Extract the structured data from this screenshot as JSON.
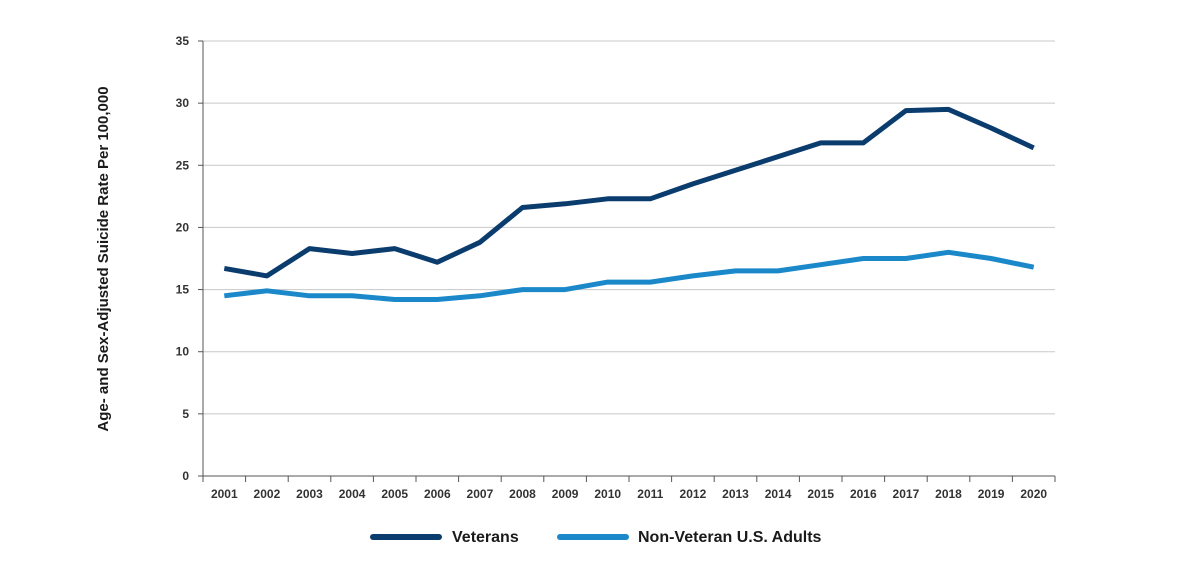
{
  "chart_data": {
    "type": "line",
    "title": "",
    "xlabel": "",
    "ylabel": "Age- and Sex-Adjusted Suicide Rate Per 100,000",
    "ylim": [
      0,
      35
    ],
    "yticks": [
      "0",
      "5",
      "10",
      "15",
      "20",
      "25",
      "30",
      "35"
    ],
    "categories": [
      "2001",
      "2002",
      "2003",
      "2004",
      "2005",
      "2006",
      "2007",
      "2008",
      "2009",
      "2010",
      "2011",
      "2012",
      "2013",
      "2014",
      "2015",
      "2016",
      "2017",
      "2018",
      "2019",
      "2020"
    ],
    "grid": true,
    "legend_position": "bottom",
    "series": [
      {
        "name": "Veterans",
        "color": "#0b3c6e",
        "values": [
          16.7,
          16.1,
          18.3,
          17.9,
          18.3,
          17.2,
          18.8,
          21.6,
          21.9,
          22.3,
          22.3,
          23.5,
          24.6,
          25.7,
          26.8,
          26.8,
          29.4,
          29.5,
          28.0,
          26.4
        ]
      },
      {
        "name": "Non-Veteran U.S. Adults",
        "color": "#1a88c9",
        "values": [
          14.5,
          14.9,
          14.5,
          14.5,
          14.2,
          14.2,
          14.5,
          15.0,
          15.0,
          15.6,
          15.6,
          16.1,
          16.5,
          16.5,
          17.0,
          17.5,
          17.5,
          18.0,
          17.5,
          16.8
        ]
      }
    ]
  }
}
